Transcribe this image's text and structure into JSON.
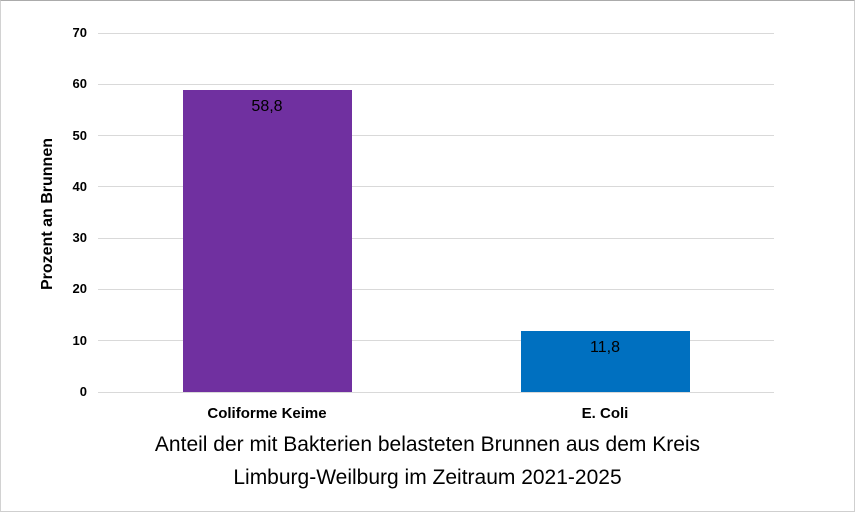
{
  "chart_data": {
    "type": "bar",
    "categories": [
      "Coliforme Keime",
      "E. Coli"
    ],
    "values": [
      58.8,
      11.8
    ],
    "value_labels": [
      "58,8",
      "11,8"
    ],
    "bar_colors": [
      "#7030a0",
      "#0070c0"
    ],
    "title_lines": [
      "Anteil der mit Bakterien belasteten Brunnen aus dem Kreis",
      "Limburg-Weilburg im Zeitraum 2021-2025"
    ],
    "title": "Anteil der mit Bakterien belasteten Brunnen aus dem Kreis Limburg-Weilburg im Zeitraum 2021-2025",
    "xlabel": "",
    "ylabel": "Prozent an Brunnen",
    "ylim": [
      0,
      70
    ],
    "ytick_step": 10,
    "ytick_labels": [
      "0",
      "10",
      "20",
      "30",
      "40",
      "50",
      "60",
      "70"
    ],
    "grid": true,
    "gridline_color": "#d9d9d9",
    "legend": "none",
    "text_color": "#000000"
  }
}
